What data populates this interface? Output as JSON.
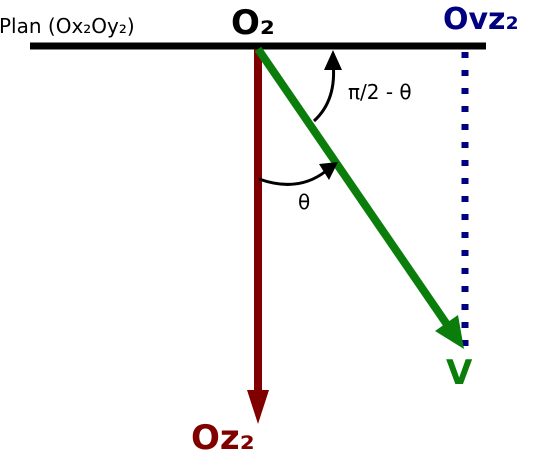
{
  "labels": {
    "plane": "Plan (Ox₂Oy₂)",
    "origin": "O₂",
    "ovz": "Ovz₂",
    "oz": "Oz₂",
    "velocity": "V",
    "angle_top": "π/2 - θ",
    "angle_theta": "θ"
  },
  "colors": {
    "plane_line": "#000000",
    "oz_axis": "#800000",
    "velocity": "#0a7d0a",
    "ovz_line": "#000080",
    "arc": "#000000",
    "text": "#000000"
  },
  "icons": {
    "oz_arrowhead": "triangle-down",
    "velocity_arrowhead": "triangle",
    "arc_arrowhead": "triangle"
  }
}
